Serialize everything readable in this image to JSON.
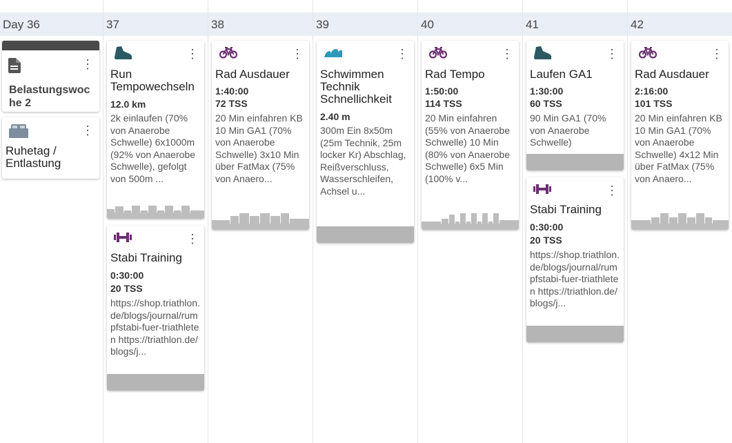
{
  "days": [
    "Day 36",
    "37",
    "38",
    "39",
    "40",
    "41",
    "42"
  ],
  "menu_glyph": "⋮",
  "cards": {
    "belastung": {
      "title": "Belastungswoche 2"
    },
    "ruhetag": {
      "title": "Ruhetag / Entlastung"
    },
    "run_tempo": {
      "title": "Run Tempowechseln",
      "stat1": "12.0 km",
      "desc": "2k einlaufen (70% von Anaerobe Schwelle) 6x1000m  (92% von Anaerobe Schwelle), gefolgt von 500m ..."
    },
    "stabi_37": {
      "title": "Stabi Training",
      "stat1": "0:30:00",
      "stat2": "20 TSS",
      "desc": "https://shop.triathlon.de/blogs/journal/rumpfstabi-fuer-triathleten https://triathlon.de/blogs/j..."
    },
    "rad_38": {
      "title": "Rad Ausdauer",
      "stat1": "1:40:00",
      "stat2": "72 TSS",
      "desc": "20 Min einfahren KB 10 Min GA1 (70% von Anaerobe Schwelle) 3x10 Min über FatMax (75% von Anaero..."
    },
    "schwimmen": {
      "title": "Schwimmen Technik Schnellichkeit",
      "stat1": "2.40 m",
      "desc": "300m Ein 8x50m (25m Technik, 25m locker Kr) Abschlag, Reißverschluss, Wasserschleifen, Achsel u..."
    },
    "rad_tempo": {
      "title": "Rad Tempo",
      "stat1": "1:50:00",
      "stat2": "114 TSS",
      "desc": "20 Min einfahren (55% von Anaerobe Schwelle) 10 Min (80% von Anaerobe Schwelle) 6x5 Min (100% v..."
    },
    "laufen_ga1": {
      "title": "Laufen GA1",
      "stat1": "1:30:00",
      "stat2": "60 TSS",
      "desc": "90 Min GA1 (70% von Anaerobe Schwelle)"
    },
    "stabi_41": {
      "title": "Stabi Training",
      "stat1": "0:30:00",
      "stat2": "20 TSS",
      "desc": "https://shop.triathlon.de/blogs/journal/rumpfstabi-fuer-triathleten https://triathlon.de/blogs/j..."
    },
    "rad_42": {
      "title": "Rad Ausdauer",
      "stat1": "2:16:00",
      "stat2": "101 TSS",
      "desc": "20 Min einfahren KB 10 Min GA1 (70% von Anaerobe Schwelle) 4x12 Min über FatMax (75% von Anaero..."
    }
  },
  "colors": {
    "run": "#2c5a63",
    "bike": "#6b2f72",
    "swim": "#2a9ab9",
    "strength": "#6b2f72",
    "note": "#555555",
    "rest": "#7d8e9e",
    "day_header_bg": "#eaeef6"
  }
}
